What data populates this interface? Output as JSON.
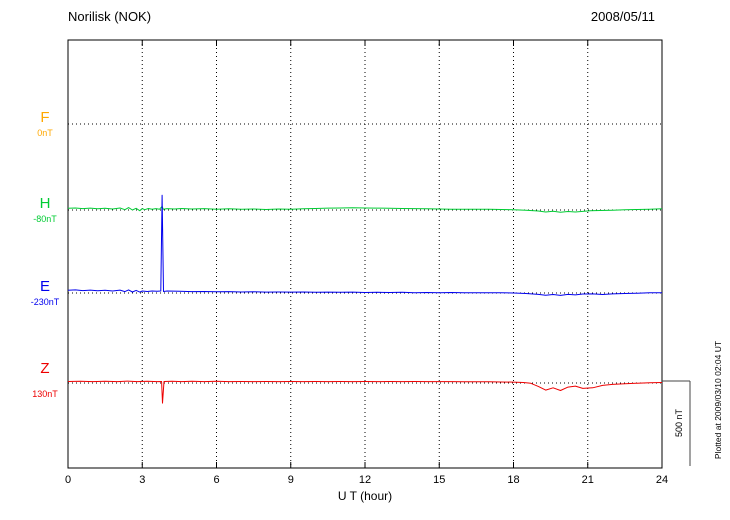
{
  "header": {
    "title": "Norilisk (NOK)",
    "date": "2008/05/11"
  },
  "axis": {
    "xlabel": "U T (hour)",
    "xmin": 0,
    "xmax": 24
  },
  "scale_bar": {
    "label": "500 nT",
    "value_nT": 500
  },
  "footer_note": "Plotted at 2009/03/10 02:04 UT",
  "chart_data": {
    "type": "line",
    "title": "Norilisk (NOK) magnetogram 2008/05/11",
    "xlabel": "U T (hour)",
    "x_range": [
      0,
      24
    ],
    "xticks": [
      0,
      3,
      6,
      9,
      12,
      15,
      18,
      21,
      24
    ],
    "grid": "dotted",
    "legend_position": "left",
    "scale_bar_nT": 500,
    "units": "points are [UT hour, offset in nT from that component's dotted baseline]",
    "series": [
      {
        "id": "F",
        "label": "F",
        "baseline_label": "0nT",
        "color": "#FFA800",
        "points": []
      },
      {
        "id": "H",
        "label": "H",
        "baseline_label": "-80nT",
        "color": "#00CC33",
        "points": [
          [
            0,
            10
          ],
          [
            0.3,
            12
          ],
          [
            0.6,
            8
          ],
          [
            0.9,
            11
          ],
          [
            1.2,
            7
          ],
          [
            1.5,
            10
          ],
          [
            1.8,
            6
          ],
          [
            2.1,
            12
          ],
          [
            2.3,
            2
          ],
          [
            2.45,
            14
          ],
          [
            2.6,
            0
          ],
          [
            2.75,
            10
          ],
          [
            2.9,
            -4
          ],
          [
            3.0,
            8
          ],
          [
            3.1,
            2
          ],
          [
            3.25,
            9
          ],
          [
            3.4,
            4
          ],
          [
            3.55,
            8
          ],
          [
            3.7,
            5
          ],
          [
            3.8,
            22
          ],
          [
            3.85,
            4
          ],
          [
            4.0,
            8
          ],
          [
            4.3,
            6
          ],
          [
            4.6,
            9
          ],
          [
            5.0,
            6
          ],
          [
            5.5,
            8
          ],
          [
            6.0,
            5
          ],
          [
            6.5,
            7
          ],
          [
            7.0,
            4
          ],
          [
            7.5,
            6
          ],
          [
            8.0,
            3
          ],
          [
            8.5,
            6
          ],
          [
            9.0,
            4
          ],
          [
            9.5,
            7
          ],
          [
            10,
            9
          ],
          [
            10.5,
            11
          ],
          [
            11,
            12
          ],
          [
            11.5,
            13
          ],
          [
            12,
            12
          ],
          [
            12.5,
            11
          ],
          [
            13,
            10
          ],
          [
            13.5,
            9
          ],
          [
            14,
            8
          ],
          [
            14.5,
            7
          ],
          [
            15,
            6
          ],
          [
            15.5,
            5
          ],
          [
            16,
            5
          ],
          [
            16.5,
            4
          ],
          [
            17,
            4
          ],
          [
            17.5,
            3
          ],
          [
            18,
            2
          ],
          [
            18.5,
            -1
          ],
          [
            19,
            -6
          ],
          [
            19.3,
            -12
          ],
          [
            19.6,
            -7
          ],
          [
            19.9,
            -13
          ],
          [
            20.2,
            -9
          ],
          [
            20.5,
            -12
          ],
          [
            20.8,
            -8
          ],
          [
            21.1,
            -5
          ],
          [
            21.5,
            -3
          ],
          [
            22,
            -1
          ],
          [
            22.5,
            1
          ],
          [
            23,
            3
          ],
          [
            23.5,
            5
          ],
          [
            24,
            7
          ]
        ]
      },
      {
        "id": "E",
        "label": "E",
        "baseline_label": "-230nT",
        "color": "#0000EE",
        "points": [
          [
            0,
            16
          ],
          [
            0.3,
            18
          ],
          [
            0.6,
            14
          ],
          [
            0.9,
            17
          ],
          [
            1.2,
            13
          ],
          [
            1.5,
            16
          ],
          [
            1.8,
            12
          ],
          [
            2.1,
            17
          ],
          [
            2.3,
            8
          ],
          [
            2.45,
            18
          ],
          [
            2.6,
            6
          ],
          [
            2.75,
            15
          ],
          [
            2.9,
            5
          ],
          [
            3.0,
            12
          ],
          [
            3.2,
            9
          ],
          [
            3.4,
            12
          ],
          [
            3.6,
            10
          ],
          [
            3.75,
            12
          ],
          [
            3.8,
            575
          ],
          [
            3.86,
            9
          ],
          [
            4.0,
            12
          ],
          [
            4.5,
            10
          ],
          [
            5.0,
            8
          ],
          [
            5.5,
            9
          ],
          [
            6.0,
            7
          ],
          [
            6.5,
            8
          ],
          [
            7.0,
            6
          ],
          [
            7.5,
            7
          ],
          [
            8.0,
            5
          ],
          [
            8.5,
            6
          ],
          [
            9.0,
            5
          ],
          [
            9.5,
            6
          ],
          [
            10,
            4
          ],
          [
            10.5,
            5
          ],
          [
            11,
            4
          ],
          [
            11.5,
            5
          ],
          [
            12,
            3
          ],
          [
            12.5,
            4
          ],
          [
            13,
            3
          ],
          [
            13.5,
            4
          ],
          [
            14,
            2
          ],
          [
            14.5,
            3
          ],
          [
            15,
            2
          ],
          [
            15.5,
            3
          ],
          [
            16,
            2
          ],
          [
            16.5,
            2
          ],
          [
            17,
            1
          ],
          [
            17.5,
            1
          ],
          [
            18,
            0
          ],
          [
            18.5,
            -3
          ],
          [
            19,
            -8
          ],
          [
            19.3,
            -13
          ],
          [
            19.6,
            -9
          ],
          [
            19.9,
            -14
          ],
          [
            20.2,
            -8
          ],
          [
            20.5,
            -11
          ],
          [
            20.8,
            -6
          ],
          [
            21.2,
            -5
          ],
          [
            21.6,
            -9
          ],
          [
            22,
            -5
          ],
          [
            22.5,
            -3
          ],
          [
            23,
            -1
          ],
          [
            23.5,
            1
          ],
          [
            24,
            2
          ]
        ]
      },
      {
        "id": "Z",
        "label": "Z",
        "baseline_label": "130nT",
        "color": "#EE0000",
        "points": [
          [
            0,
            9
          ],
          [
            0.5,
            10
          ],
          [
            1,
            8
          ],
          [
            1.5,
            10
          ],
          [
            2,
            8
          ],
          [
            2.4,
            11
          ],
          [
            2.8,
            8
          ],
          [
            3.2,
            10
          ],
          [
            3.6,
            8
          ],
          [
            3.78,
            9
          ],
          [
            3.82,
            -118
          ],
          [
            3.88,
            9
          ],
          [
            4.2,
            10
          ],
          [
            4.6,
            8
          ],
          [
            5,
            10
          ],
          [
            5.5,
            8
          ],
          [
            6,
            10
          ],
          [
            6.5,
            8
          ],
          [
            7,
            9
          ],
          [
            7.5,
            8
          ],
          [
            8,
            9
          ],
          [
            8.5,
            8
          ],
          [
            9,
            9
          ],
          [
            9.5,
            8
          ],
          [
            10,
            9
          ],
          [
            10.5,
            8
          ],
          [
            11,
            9
          ],
          [
            11.5,
            8
          ],
          [
            12,
            9
          ],
          [
            12.5,
            8
          ],
          [
            13,
            9
          ],
          [
            13.5,
            8
          ],
          [
            14,
            9
          ],
          [
            14.5,
            8
          ],
          [
            15,
            8
          ],
          [
            15.5,
            8
          ],
          [
            16,
            7
          ],
          [
            16.5,
            7
          ],
          [
            17,
            7
          ],
          [
            17.5,
            6
          ],
          [
            18,
            5
          ],
          [
            18.4,
            3
          ],
          [
            18.7,
            -2
          ],
          [
            19,
            -20
          ],
          [
            19.3,
            -42
          ],
          [
            19.6,
            -28
          ],
          [
            19.9,
            -44
          ],
          [
            20.2,
            -24
          ],
          [
            20.5,
            -18
          ],
          [
            20.8,
            -32
          ],
          [
            21.2,
            -28
          ],
          [
            21.6,
            -14
          ],
          [
            22,
            -8
          ],
          [
            22.5,
            -4
          ],
          [
            23,
            -1
          ],
          [
            23.5,
            1
          ],
          [
            24,
            3
          ]
        ]
      }
    ]
  }
}
